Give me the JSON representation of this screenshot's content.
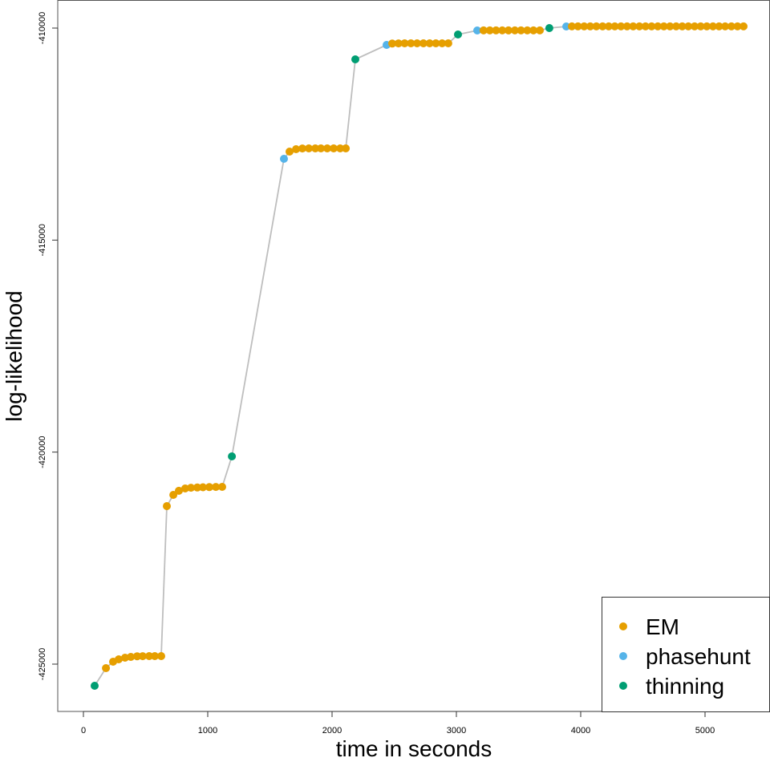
{
  "chart_data": {
    "type": "scatter",
    "title": "",
    "xlabel": "time in seconds",
    "ylabel": "log-likelihood",
    "xlim": [
      -210,
      5500
    ],
    "ylim": [
      -426120,
      -409340
    ],
    "xticks": [
      0,
      1000,
      2000,
      3000,
      4000,
      5000
    ],
    "xtick_labels": [
      "0",
      "1000",
      "2000",
      "3000",
      "4000",
      "5000"
    ],
    "yticks": [
      -425000,
      -420000,
      -415000,
      -410000
    ],
    "ytick_labels": [
      "-425000",
      "-420000",
      "-415000",
      "-410000"
    ],
    "grid": false,
    "connecting_line": true,
    "legend": {
      "position": "bottom-right",
      "entries": [
        {
          "name": "EM",
          "color": "#E69F00"
        },
        {
          "name": "phasehunt",
          "color": "#56B4E9"
        },
        {
          "name": "thinning",
          "color": "#009E73"
        }
      ]
    },
    "line_color": "#BEBEBE",
    "points": [
      {
        "x": 90,
        "y": -425510,
        "type": "thinning"
      },
      {
        "x": 181,
        "y": -425094,
        "type": "EM"
      },
      {
        "x": 239,
        "y": -424943,
        "type": "EM"
      },
      {
        "x": 284,
        "y": -424886,
        "type": "EM"
      },
      {
        "x": 335,
        "y": -424848,
        "type": "EM"
      },
      {
        "x": 381,
        "y": -424829,
        "type": "EM"
      },
      {
        "x": 432,
        "y": -424815,
        "type": "EM"
      },
      {
        "x": 477,
        "y": -424812,
        "type": "EM"
      },
      {
        "x": 529,
        "y": -424810,
        "type": "EM"
      },
      {
        "x": 574,
        "y": -424810,
        "type": "EM"
      },
      {
        "x": 626,
        "y": -424810,
        "type": "EM"
      },
      {
        "x": 671,
        "y": -421273,
        "type": "EM"
      },
      {
        "x": 723,
        "y": -421008,
        "type": "EM"
      },
      {
        "x": 768,
        "y": -420913,
        "type": "EM"
      },
      {
        "x": 819,
        "y": -420857,
        "type": "EM"
      },
      {
        "x": 865,
        "y": -420840,
        "type": "EM"
      },
      {
        "x": 916,
        "y": -420835,
        "type": "EM"
      },
      {
        "x": 961,
        "y": -420830,
        "type": "EM"
      },
      {
        "x": 1013,
        "y": -420826,
        "type": "EM"
      },
      {
        "x": 1065,
        "y": -420822,
        "type": "EM"
      },
      {
        "x": 1116,
        "y": -420819,
        "type": "EM"
      },
      {
        "x": 1194,
        "y": -420100,
        "type": "thinning"
      },
      {
        "x": 1613,
        "y": -413083,
        "type": "phasehunt"
      },
      {
        "x": 1658,
        "y": -412913,
        "type": "EM"
      },
      {
        "x": 1710,
        "y": -412856,
        "type": "EM"
      },
      {
        "x": 1761,
        "y": -412840,
        "type": "EM"
      },
      {
        "x": 1813,
        "y": -412837,
        "type": "EM"
      },
      {
        "x": 1865,
        "y": -412837,
        "type": "EM"
      },
      {
        "x": 1910,
        "y": -412837,
        "type": "EM"
      },
      {
        "x": 1961,
        "y": -412837,
        "type": "EM"
      },
      {
        "x": 2013,
        "y": -412837,
        "type": "EM"
      },
      {
        "x": 2065,
        "y": -412837,
        "type": "EM"
      },
      {
        "x": 2110,
        "y": -412837,
        "type": "EM"
      },
      {
        "x": 2187,
        "y": -410738,
        "type": "thinning"
      },
      {
        "x": 2439,
        "y": -410397,
        "type": "phasehunt"
      },
      {
        "x": 2484,
        "y": -410365,
        "type": "EM"
      },
      {
        "x": 2534,
        "y": -410362,
        "type": "EM"
      },
      {
        "x": 2584,
        "y": -410360,
        "type": "EM"
      },
      {
        "x": 2634,
        "y": -410359,
        "type": "EM"
      },
      {
        "x": 2684,
        "y": -410359,
        "type": "EM"
      },
      {
        "x": 2735,
        "y": -410359,
        "type": "EM"
      },
      {
        "x": 2785,
        "y": -410359,
        "type": "EM"
      },
      {
        "x": 2835,
        "y": -410359,
        "type": "EM"
      },
      {
        "x": 2885,
        "y": -410359,
        "type": "EM"
      },
      {
        "x": 2935,
        "y": -410359,
        "type": "EM"
      },
      {
        "x": 3013,
        "y": -410151,
        "type": "thinning"
      },
      {
        "x": 3168,
        "y": -410057,
        "type": "phasehunt"
      },
      {
        "x": 3219,
        "y": -410055,
        "type": "EM"
      },
      {
        "x": 3269,
        "y": -410054,
        "type": "EM"
      },
      {
        "x": 3319,
        "y": -410054,
        "type": "EM"
      },
      {
        "x": 3369,
        "y": -410054,
        "type": "EM"
      },
      {
        "x": 3419,
        "y": -410054,
        "type": "EM"
      },
      {
        "x": 3470,
        "y": -410054,
        "type": "EM"
      },
      {
        "x": 3520,
        "y": -410054,
        "type": "EM"
      },
      {
        "x": 3570,
        "y": -410054,
        "type": "EM"
      },
      {
        "x": 3620,
        "y": -410054,
        "type": "EM"
      },
      {
        "x": 3671,
        "y": -410054,
        "type": "EM"
      },
      {
        "x": 3748,
        "y": -410000,
        "type": "thinning"
      },
      {
        "x": 3884,
        "y": -409962,
        "type": "phasehunt"
      },
      {
        "x": 3929,
        "y": -409960,
        "type": "EM"
      },
      {
        "x": 3978,
        "y": -409960,
        "type": "EM"
      },
      {
        "x": 4028,
        "y": -409960,
        "type": "EM"
      },
      {
        "x": 4077,
        "y": -409960,
        "type": "EM"
      },
      {
        "x": 4126,
        "y": -409960,
        "type": "EM"
      },
      {
        "x": 4176,
        "y": -409960,
        "type": "EM"
      },
      {
        "x": 4225,
        "y": -409960,
        "type": "EM"
      },
      {
        "x": 4274,
        "y": -409960,
        "type": "EM"
      },
      {
        "x": 4324,
        "y": -409960,
        "type": "EM"
      },
      {
        "x": 4373,
        "y": -409960,
        "type": "EM"
      },
      {
        "x": 4422,
        "y": -409960,
        "type": "EM"
      },
      {
        "x": 4472,
        "y": -409960,
        "type": "EM"
      },
      {
        "x": 4521,
        "y": -409960,
        "type": "EM"
      },
      {
        "x": 4570,
        "y": -409960,
        "type": "EM"
      },
      {
        "x": 4620,
        "y": -409960,
        "type": "EM"
      },
      {
        "x": 4669,
        "y": -409960,
        "type": "EM"
      },
      {
        "x": 4718,
        "y": -409960,
        "type": "EM"
      },
      {
        "x": 4768,
        "y": -409960,
        "type": "EM"
      },
      {
        "x": 4817,
        "y": -409960,
        "type": "EM"
      },
      {
        "x": 4866,
        "y": -409960,
        "type": "EM"
      },
      {
        "x": 4916,
        "y": -409960,
        "type": "EM"
      },
      {
        "x": 4965,
        "y": -409960,
        "type": "EM"
      },
      {
        "x": 5014,
        "y": -409960,
        "type": "EM"
      },
      {
        "x": 5064,
        "y": -409960,
        "type": "EM"
      },
      {
        "x": 5113,
        "y": -409960,
        "type": "EM"
      },
      {
        "x": 5162,
        "y": -409960,
        "type": "EM"
      },
      {
        "x": 5212,
        "y": -409960,
        "type": "EM"
      },
      {
        "x": 5261,
        "y": -409960,
        "type": "EM"
      },
      {
        "x": 5310,
        "y": -409960,
        "type": "EM"
      }
    ]
  }
}
